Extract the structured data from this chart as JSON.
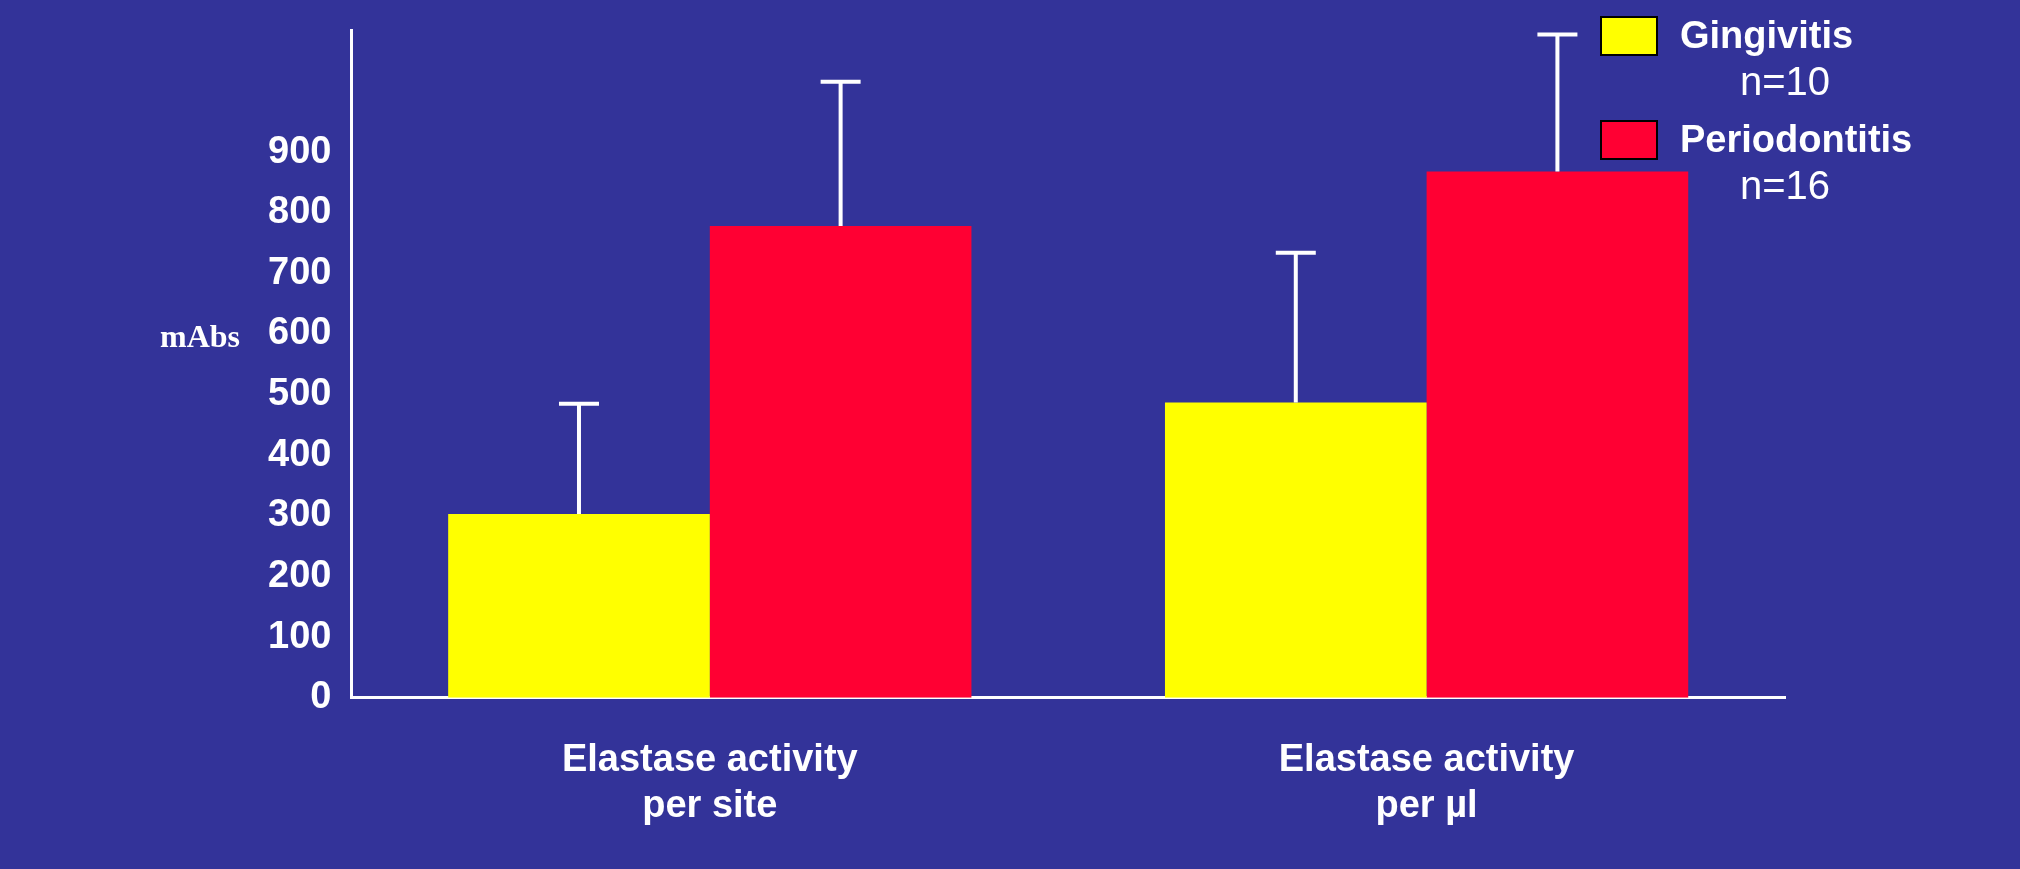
{
  "chart_data": {
    "type": "bar",
    "ylabel": "mAbs",
    "categories": [
      "Elastase activity per site",
      "Elastase activity per µl"
    ],
    "series": [
      {
        "name": "Gingivitis",
        "color": "#ffff00",
        "values": [
          303,
          487
        ],
        "errors": [
          [
            303,
            485
          ],
          [
            487,
            734
          ]
        ]
      },
      {
        "name": "Periodontitis",
        "color": "#ff0033",
        "values": [
          778,
          868
        ],
        "errors": [
          [
            778,
            1016
          ],
          [
            868,
            1094
          ]
        ]
      }
    ],
    "ylim": [
      0,
      1100
    ],
    "yticks": [
      0,
      100,
      200,
      300,
      400,
      500,
      600,
      700,
      800,
      900
    ],
    "grid": false,
    "legend": "top right",
    "annotations": [
      "n=10",
      "n=16"
    ]
  }
}
